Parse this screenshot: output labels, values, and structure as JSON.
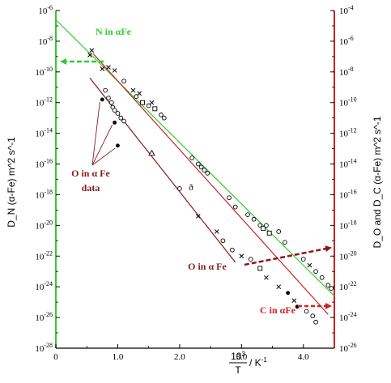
{
  "chart_data": {
    "type": "scatter",
    "xlabel_num": "10",
    "xlabel_sup": "3",
    "xlabel_den": "T",
    "xlabel_unit": "/ K",
    "xlabel_unit_sup": "-1",
    "ylabel_left": "D_N (α-Fe) m^2 s^-1",
    "ylabel_right": "D_O and D_C (α-Fe) m^2 s^-1",
    "xlim": [
      0,
      4.5
    ],
    "ylim_left_exp": [
      -28,
      -6
    ],
    "ylim_right_exp": [
      -26,
      -4
    ],
    "x_ticks": [
      {
        "value": 0,
        "label": "0"
      },
      {
        "value": 1,
        "label": "1.0"
      },
      {
        "value": 2,
        "label": "2.0"
      },
      {
        "value": 3,
        "label": "3.0"
      },
      {
        "value": 4,
        "label": "4.0"
      }
    ],
    "left_ticks": [
      {
        "exp": -6,
        "label": "-6"
      },
      {
        "exp": -8,
        "label": "-8"
      },
      {
        "exp": -10,
        "label": "-10"
      },
      {
        "exp": -12,
        "label": "-12"
      },
      {
        "exp": -14,
        "label": "-14"
      },
      {
        "exp": -16,
        "label": "-16"
      },
      {
        "exp": -18,
        "label": "-18"
      },
      {
        "exp": -20,
        "label": "-20"
      },
      {
        "exp": -22,
        "label": "-22"
      },
      {
        "exp": -24,
        "label": "-24"
      },
      {
        "exp": -26,
        "label": "-26"
      },
      {
        "exp": -28,
        "label": "-28"
      }
    ],
    "right_ticks": [
      {
        "exp": -4,
        "label": "-4"
      },
      {
        "exp": -6,
        "label": "-6"
      },
      {
        "exp": -8,
        "label": "-8"
      },
      {
        "exp": -10,
        "label": "-10"
      },
      {
        "exp": -12,
        "label": "-12"
      },
      {
        "exp": -14,
        "label": "-14"
      },
      {
        "exp": -16,
        "label": "-16"
      },
      {
        "exp": -18,
        "label": "-18"
      },
      {
        "exp": -20,
        "label": "-20"
      },
      {
        "exp": -22,
        "label": "-22"
      },
      {
        "exp": -24,
        "label": "-24"
      },
      {
        "exp": -26,
        "label": "-26"
      }
    ],
    "tick_base": "10",
    "lines": [
      {
        "name": "N in αFe",
        "color": "#33cc33",
        "axis": "left",
        "x": [
          0,
          4.5
        ],
        "y_exp": [
          -6.6,
          -24.6
        ]
      },
      {
        "name": "C in αFe",
        "color": "#cc2222",
        "axis": "left",
        "x": [
          0.6,
          4.4
        ],
        "y_exp": [
          -8.8,
          -25.8
        ]
      },
      {
        "name": "O in αFe",
        "color": "#8b1a1a",
        "axis": "left",
        "x": [
          0.55,
          2.9
        ],
        "y_exp": [
          -10.4,
          -22.4
        ]
      }
    ],
    "n_data": [
      {
        "x": 0.55,
        "e": -8.9,
        "m": "x"
      },
      {
        "x": 0.58,
        "e": -8.6,
        "m": "x"
      },
      {
        "x": 0.75,
        "e": -9.8,
        "m": "x"
      },
      {
        "x": 0.85,
        "e": -9.7,
        "m": "x"
      },
      {
        "x": 0.95,
        "e": -9.9,
        "m": "x"
      },
      {
        "x": 1.1,
        "e": -10.6,
        "m": "o"
      },
      {
        "x": 1.25,
        "e": -11.2,
        "m": "x"
      },
      {
        "x": 1.3,
        "e": -11.6,
        "m": "o"
      },
      {
        "x": 1.35,
        "e": -11.4,
        "m": "x"
      },
      {
        "x": 1.4,
        "e": -12.0,
        "m": "s"
      },
      {
        "x": 1.5,
        "e": -12.2,
        "m": "o"
      },
      {
        "x": 1.55,
        "e": -12.0,
        "m": "x"
      },
      {
        "x": 1.6,
        "e": -12.4,
        "m": "s"
      },
      {
        "x": 1.7,
        "e": -12.8,
        "m": "o"
      },
      {
        "x": 1.75,
        "e": -13.0,
        "m": "o"
      },
      {
        "x": 2.2,
        "e": -15.6,
        "m": "o"
      },
      {
        "x": 2.3,
        "e": -16.0,
        "m": "o"
      },
      {
        "x": 2.35,
        "e": -16.2,
        "m": "o"
      },
      {
        "x": 2.4,
        "e": -16.4,
        "m": "o"
      },
      {
        "x": 2.45,
        "e": -16.6,
        "m": "o"
      },
      {
        "x": 2.8,
        "e": -18.2,
        "m": "o"
      },
      {
        "x": 2.9,
        "e": -18.8,
        "m": "o"
      },
      {
        "x": 3.1,
        "e": -19.3,
        "m": "o"
      },
      {
        "x": 3.2,
        "e": -19.6,
        "m": "o"
      },
      {
        "x": 3.3,
        "e": -20.0,
        "m": "o"
      },
      {
        "x": 3.35,
        "e": -20.2,
        "m": "s"
      },
      {
        "x": 3.4,
        "e": -20.0,
        "m": "o"
      },
      {
        "x": 3.45,
        "e": -20.5,
        "m": "s"
      },
      {
        "x": 3.6,
        "e": -20.4,
        "m": "o"
      },
      {
        "x": 3.7,
        "e": -21.1,
        "m": "o"
      },
      {
        "x": 4.0,
        "e": -22.2,
        "m": "o"
      },
      {
        "x": 4.1,
        "e": -22.6,
        "m": "x"
      },
      {
        "x": 4.2,
        "e": -23.0,
        "m": "o"
      },
      {
        "x": 4.3,
        "e": -23.4,
        "m": "o"
      },
      {
        "x": 4.4,
        "e": -23.9,
        "m": "o"
      },
      {
        "x": 4.45,
        "e": -24.1,
        "m": "o"
      }
    ],
    "c_data": [
      {
        "x": 0.8,
        "e": -11.2,
        "m": "o"
      },
      {
        "x": 0.85,
        "e": -11.7,
        "m": "o"
      },
      {
        "x": 0.9,
        "e": -12.0,
        "m": "o"
      },
      {
        "x": 0.92,
        "e": -12.3,
        "m": "o"
      },
      {
        "x": 0.95,
        "e": -12.5,
        "m": "o"
      },
      {
        "x": 1.0,
        "e": -12.7,
        "m": "o"
      },
      {
        "x": 1.05,
        "e": -13.0,
        "m": "o"
      },
      {
        "x": 1.1,
        "e": -13.2,
        "m": "o"
      },
      {
        "x": 1.55,
        "e": -15.3,
        "m": "t"
      },
      {
        "x": 2.0,
        "e": -17.6,
        "m": "o"
      },
      {
        "x": 2.3,
        "e": -19.4,
        "m": "x"
      },
      {
        "x": 2.6,
        "e": -20.4,
        "m": "x"
      },
      {
        "x": 2.7,
        "e": -21.0,
        "m": "o"
      },
      {
        "x": 2.85,
        "e": -21.6,
        "m": "o"
      },
      {
        "x": 3.0,
        "e": -22.0,
        "m": "x"
      },
      {
        "x": 3.15,
        "e": -22.2,
        "m": "o"
      },
      {
        "x": 3.3,
        "e": -22.8,
        "m": "s"
      },
      {
        "x": 3.4,
        "e": -23.4,
        "m": "x"
      },
      {
        "x": 3.6,
        "e": -24.0,
        "m": "x"
      },
      {
        "x": 3.75,
        "e": -24.4,
        "m": "f"
      },
      {
        "x": 3.85,
        "e": -24.9,
        "m": "x"
      },
      {
        "x": 3.9,
        "e": -25.3,
        "m": "f"
      },
      {
        "x": 4.05,
        "e": -25.6,
        "m": "o"
      },
      {
        "x": 4.15,
        "e": -25.9,
        "m": "o"
      },
      {
        "x": 4.2,
        "e": -26.3,
        "m": "o"
      }
    ],
    "o_data": [
      {
        "x": 0.75,
        "e": -11.8,
        "m": "f"
      },
      {
        "x": 0.95,
        "e": -13.3,
        "m": "f"
      },
      {
        "x": 1.0,
        "e": -14.8,
        "m": "f"
      }
    ],
    "annotations": {
      "n_label": "N in αFe",
      "o_label": "O in α Fe",
      "c_label": "C in αFe",
      "o_data_line1": "O in α Fe",
      "o_data_line2": "data",
      "o_data_extra": "ð"
    },
    "colors": {
      "n_line": "#33cc33",
      "c_line": "#cc2222",
      "o_line": "#8b1a1a",
      "n_text": "#33cc33",
      "o_text": "#8b1a1a",
      "c_text": "#cc2222",
      "arrow_green": "#33cc33",
      "arrow_o": "#8b1a1a",
      "arrow_c": "#cc2222",
      "axis_left": "#33cc33",
      "axis_right": "#cc2222",
      "axis_bottom": "#000000"
    }
  }
}
